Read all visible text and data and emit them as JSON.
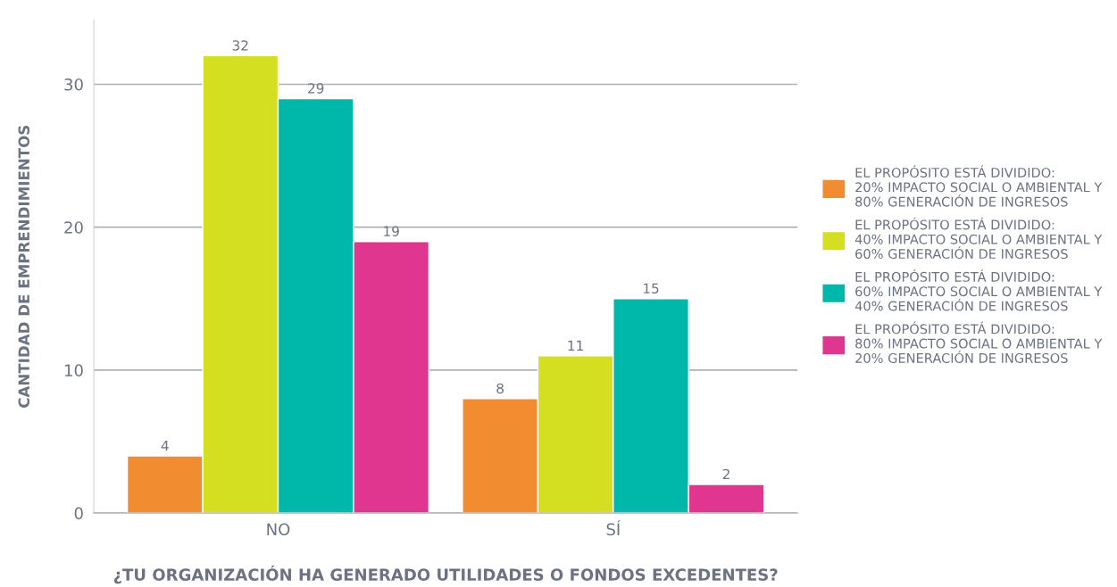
{
  "chart_data": {
    "type": "bar",
    "xlabel": "¿TU ORGANIZACIÓN HA GENERADO UTILIDADES O FONDOS EXCEDENTES?",
    "ylabel": "CANTIDAD DE EMPRENDIMIENTOS",
    "categories": [
      "NO",
      "SÍ"
    ],
    "series": [
      {
        "name": "EL PROPÓSITO ESTÁ DIVIDIDO:\n20% IMPACTO SOCIAL O AMBIENTAL Y\n80% GENERACIÓN DE INGRESOS",
        "color": "#f28c30",
        "values": [
          4,
          8
        ]
      },
      {
        "name": "EL PROPÓSITO ESTÁ DIVIDIDO:\n40% IMPACTO SOCIAL O AMBIENTAL Y\n60% GENERACIÓN DE INGRESOS",
        "color": "#d4df22",
        "values": [
          32,
          11
        ]
      },
      {
        "name": "EL PROPÓSITO ESTÁ DIVIDIDO:\n60% IMPACTO SOCIAL O AMBIENTAL Y\n40% GENERACIÓN DE INGRESOS",
        "color": "#00b8a9",
        "values": [
          29,
          15
        ]
      },
      {
        "name": "EL PROPÓSITO ESTÁ DIVIDIDO:\n80% IMPACTO SOCIAL O AMBIENTAL Y\n20% GENERACIÓN DE INGRESOS",
        "color": "#e0368f",
        "values": [
          19,
          2
        ]
      }
    ],
    "ylim": [
      0,
      34.5
    ],
    "yticks": [
      0,
      10,
      20,
      30
    ],
    "grid": "y",
    "legend": "right",
    "data_labels": true
  }
}
